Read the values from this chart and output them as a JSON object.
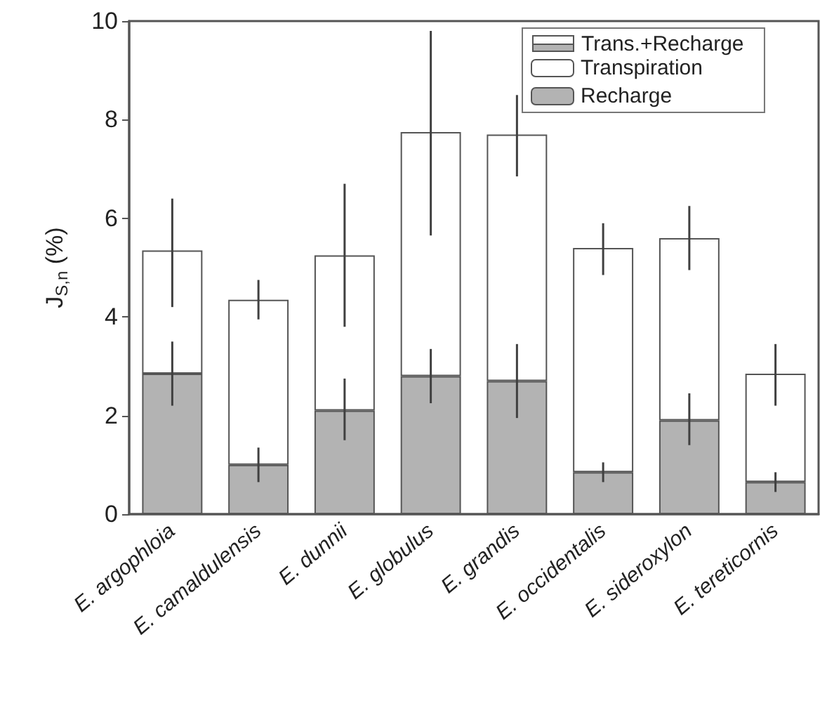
{
  "chart_data": {
    "type": "bar",
    "stacked": true,
    "ylabel": "J$_{S,n}$ (%)",
    "categories": [
      "E. argophloia",
      "E. camaldulensis",
      "E. dunnii",
      "E. globulus",
      "E. grandis",
      "E. occidentalis",
      "E. sideroxylon",
      "E. tereticornis"
    ],
    "series": [
      {
        "name": "Recharge",
        "color": "#b3b3b3",
        "values": [
          2.85,
          1.0,
          2.1,
          2.8,
          2.7,
          0.85,
          1.9,
          0.65
        ],
        "errors": [
          [
            2.2,
            3.5
          ],
          [
            0.65,
            1.35
          ],
          [
            1.5,
            2.75
          ],
          [
            2.25,
            3.35
          ],
          [
            1.95,
            3.45
          ],
          [
            0.65,
            1.05
          ],
          [
            1.4,
            2.45
          ],
          [
            0.45,
            0.85
          ]
        ]
      },
      {
        "name": "Transpiration",
        "color": "#ffffff",
        "values": [
          2.5,
          3.35,
          3.15,
          4.95,
          5.0,
          4.55,
          3.7,
          2.2
        ],
        "errors": [
          [
            4.2,
            6.4
          ],
          [
            3.95,
            4.75
          ],
          [
            3.8,
            6.7
          ],
          [
            5.65,
            9.8
          ],
          [
            6.85,
            8.5
          ],
          [
            4.85,
            5.9
          ],
          [
            4.95,
            6.25
          ],
          [
            2.2,
            3.45
          ]
        ]
      }
    ],
    "annotations": [
      "Trans.+Recharge"
    ],
    "ylim": [
      0,
      10
    ],
    "yticks": [
      0,
      2,
      4,
      6,
      8,
      10
    ],
    "grid": false,
    "legend": "top right"
  }
}
